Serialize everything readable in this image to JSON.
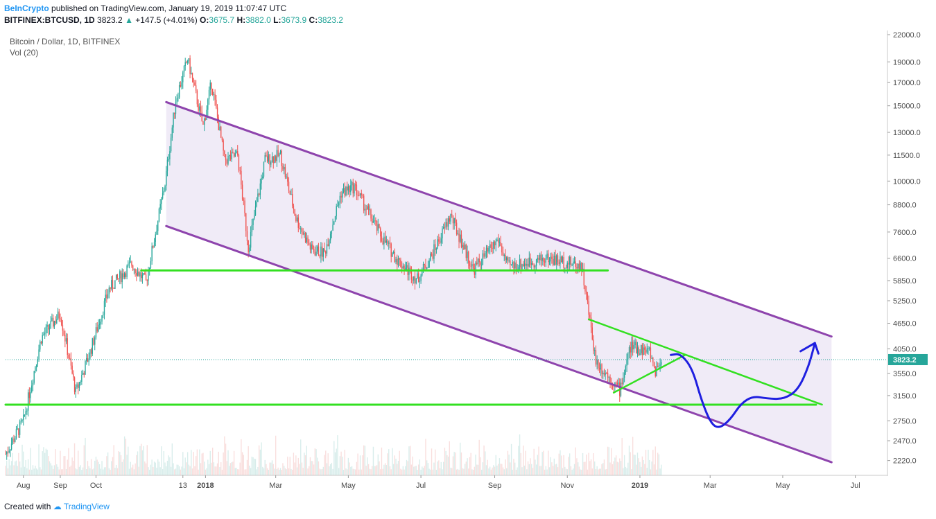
{
  "header": {
    "author": "BeInCrypto",
    "published": "published on TradingView.com, January 19, 2019 11:07:47 UTC",
    "symbol": "BITFINEX:BTCUSD, 1D",
    "last": "3823.2",
    "change": "+147.5 (+4.01%)",
    "o_label": "O:",
    "o": "3675.7",
    "h_label": "H:",
    "h": "3882.0",
    "l_label": "L:",
    "l": "3673.9",
    "c_label": "C:",
    "c": "3823.2"
  },
  "legend": {
    "title": "Bitcoin / Dollar, 1D, BITFINEX",
    "indicator": "Vol (20)"
  },
  "footer": {
    "created": "Created with",
    "brand": "TradingView"
  },
  "colors": {
    "up": "#26a69a",
    "down": "#ef5350",
    "channel": "#8e44ad",
    "channel_fill": "#ede7f6",
    "support": "#33e021",
    "projection": "#1f1fe0",
    "price_tag": "#26a69a"
  },
  "chart_data": {
    "type": "candlestick",
    "title": "Bitcoin / Dollar, 1D, BITFINEX",
    "y_scale": "log",
    "ylim": [
      2050,
      22500
    ],
    "y_ticks": [
      "22000.0",
      "19000.0",
      "17000.0",
      "15000.0",
      "13000.0",
      "11500.0",
      "10000.0",
      "8800.0",
      "7600.0",
      "6600.0",
      "5850.0",
      "5250.0",
      "4650.0",
      "4050.0",
      "3550.0",
      "3150.0",
      "2750.0",
      "2470.0",
      "2220.0"
    ],
    "x_ticks": [
      "Aug",
      "Sep",
      "Oct",
      "13",
      "2018",
      "Mar",
      "May",
      "Jul",
      "Sep",
      "Nov",
      "2019",
      "Mar",
      "May",
      "Jul"
    ],
    "x_tick_dates": [
      "2017-08-01",
      "2017-09-01",
      "2017-10-01",
      "2017-12-13",
      "2018-01-01",
      "2018-03-01",
      "2018-05-01",
      "2018-07-01",
      "2018-09-01",
      "2018-11-01",
      "2019-01-01",
      "2019-03-01",
      "2019-05-01",
      "2019-07-01"
    ],
    "bold_x_ticks": [
      "2018",
      "2019"
    ],
    "current_price": "3823.2",
    "price_path": [
      [
        "2017-07-17",
        2300
      ],
      [
        "2017-08-01",
        2750
      ],
      [
        "2017-08-16",
        4300
      ],
      [
        "2017-09-01",
        4900
      ],
      [
        "2017-09-14",
        3200
      ],
      [
        "2017-09-25",
        3900
      ],
      [
        "2017-10-12",
        5600
      ],
      [
        "2017-10-31",
        6400
      ],
      [
        "2017-11-12",
        5800
      ],
      [
        "2017-11-28",
        9900
      ],
      [
        "2017-12-07",
        15500
      ],
      [
        "2017-12-17",
        19300
      ],
      [
        "2017-12-30",
        13400
      ],
      [
        "2018-01-06",
        17000
      ],
      [
        "2018-01-17",
        11200
      ],
      [
        "2018-01-28",
        11500
      ],
      [
        "2018-02-06",
        7000
      ],
      [
        "2018-02-20",
        11200
      ],
      [
        "2018-03-05",
        11500
      ],
      [
        "2018-03-18",
        8200
      ],
      [
        "2018-03-31",
        6900
      ],
      [
        "2018-04-11",
        6800
      ],
      [
        "2018-04-25",
        9400
      ],
      [
        "2018-05-06",
        9700
      ],
      [
        "2018-05-29",
        7400
      ],
      [
        "2018-06-12",
        6500
      ],
      [
        "2018-06-28",
        5900
      ],
      [
        "2018-07-10",
        6700
      ],
      [
        "2018-07-26",
        8300
      ],
      [
        "2018-08-14",
        6200
      ],
      [
        "2018-09-04",
        7300
      ],
      [
        "2018-09-12",
        6300
      ],
      [
        "2018-10-15",
        6600
      ],
      [
        "2018-11-13",
        6350
      ],
      [
        "2018-11-25",
        3800
      ],
      [
        "2018-12-15",
        3250
      ],
      [
        "2018-12-24",
        4100
      ],
      [
        "2019-01-09",
        4000
      ],
      [
        "2019-01-14",
        3600
      ],
      [
        "2019-01-19",
        3823
      ]
    ],
    "annotations": {
      "channel_upper": [
        [
          "2017-11-29",
          15300
        ],
        [
          "2019-06-11",
          4330
        ]
      ],
      "channel_lower": [
        [
          "2017-11-29",
          7850
        ],
        [
          "2019-06-11",
          2200
        ]
      ],
      "support_upper": [
        [
          "2017-11-08",
          6180
        ],
        [
          "2018-12-05",
          6180
        ]
      ],
      "support_lower": [
        [
          "2017-07-17",
          3000
        ],
        [
          "2019-05-29",
          3000
        ]
      ],
      "triangle_upper": [
        [
          "2018-11-19",
          4750
        ],
        [
          "2019-06-03",
          3000
        ]
      ],
      "triangle_lower": [
        [
          "2018-12-10",
          3200
        ],
        [
          "2019-02-08",
          3920
        ]
      ],
      "projection": [
        [
          "2019-01-27",
          3920
        ],
        [
          "2019-02-04",
          3950
        ],
        [
          "2019-02-14",
          3650
        ],
        [
          "2019-02-22",
          3050
        ],
        [
          "2019-03-02",
          2700
        ],
        [
          "2019-03-09",
          2640
        ],
        [
          "2019-03-18",
          2770
        ],
        [
          "2019-03-27",
          3020
        ],
        [
          "2019-04-06",
          3140
        ],
        [
          "2019-04-18",
          3100
        ],
        [
          "2019-05-02",
          3090
        ],
        [
          "2019-05-14",
          3250
        ],
        [
          "2019-05-23",
          3700
        ],
        [
          "2019-05-28",
          4180
        ]
      ],
      "projection_arrow_left": [
        [
          "2019-05-16",
          4000
        ],
        [
          "2019-05-28",
          4180
        ]
      ],
      "projection_arrow_right": [
        [
          "2019-05-28",
          4180
        ],
        [
          "2019-05-31",
          3950
        ]
      ]
    }
  }
}
